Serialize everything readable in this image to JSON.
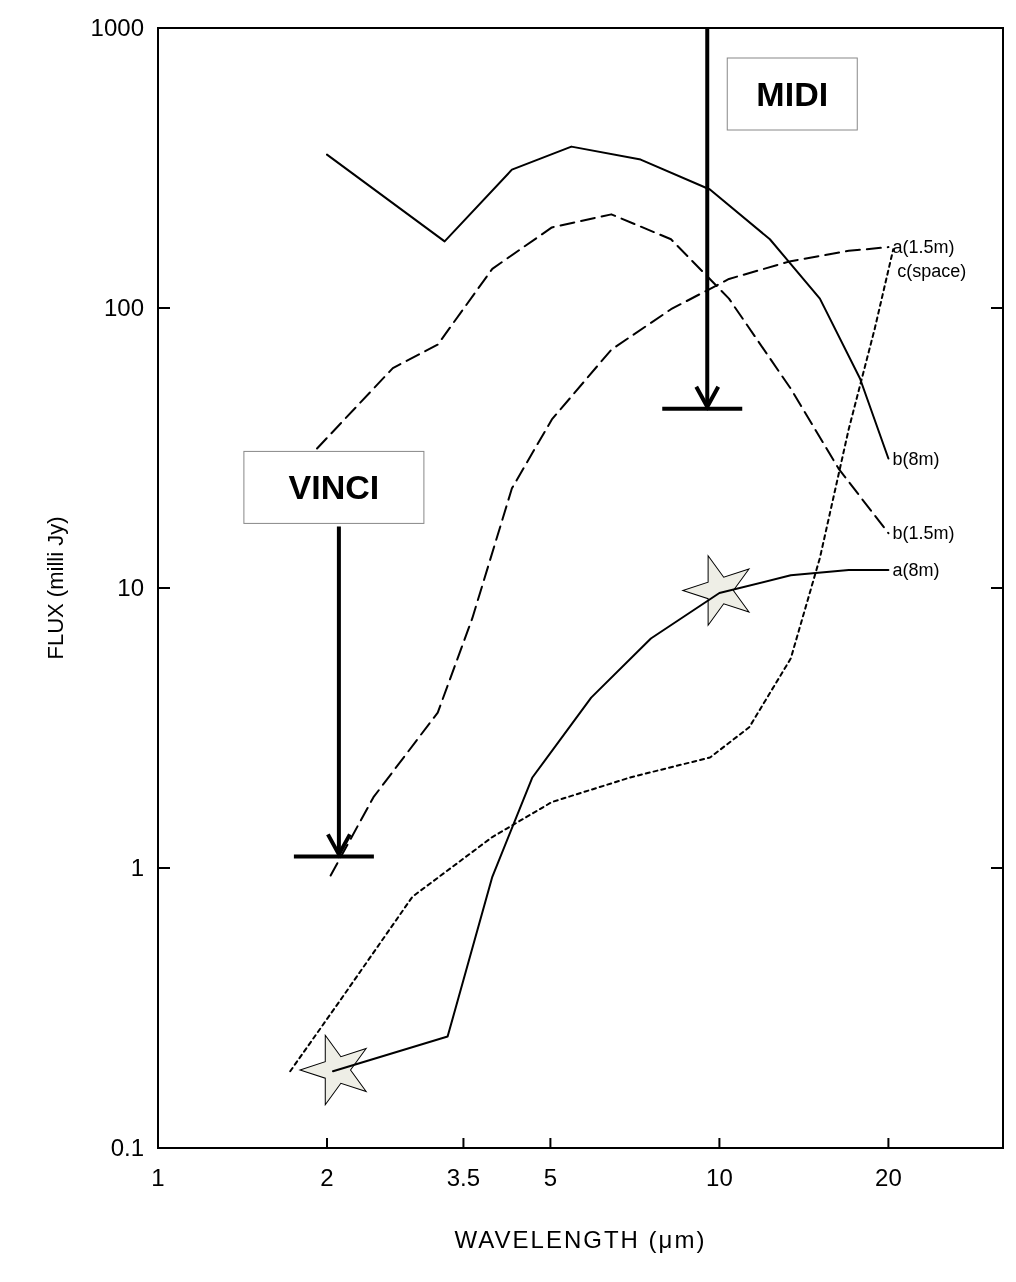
{
  "chart_data": {
    "type": "line",
    "xlabel": "WAVELENGTH (μm)",
    "ylabel": "FLUX (milli Jy)",
    "log": "xy",
    "xlim": [
      1,
      32
    ],
    "ylim": [
      0.1,
      1000
    ],
    "xticks": [
      1,
      2,
      3.5,
      5,
      10,
      20
    ],
    "yticks": [
      0.1,
      1,
      10,
      100,
      1000
    ],
    "grid": false,
    "series": [
      {
        "name": "a(1.5m)",
        "color": "#000000",
        "line_style": "dashed",
        "x": [
          2.03,
          2.42,
          3.15,
          3.63,
          4.27,
          5.03,
          6.42,
          8.2,
          10.4,
          13.4,
          17,
          20
        ],
        "values": [
          0.94,
          1.79,
          3.59,
          7.8,
          22.7,
          40,
          71,
          99,
          127,
          147,
          160,
          165
        ]
      },
      {
        "name": "c(space)",
        "color": "#000000",
        "line_style": "dotted",
        "x": [
          1.72,
          2.14,
          2.84,
          3.94,
          5.03,
          6.96,
          9.62,
          11.3,
          13.4,
          15.1,
          17,
          18.9,
          20.4
        ],
        "values": [
          0.188,
          0.35,
          0.79,
          1.29,
          1.72,
          2.11,
          2.48,
          3.18,
          5.6,
          12.8,
          37,
          84,
          162
        ]
      },
      {
        "name": "b(8m)",
        "color": "#000000",
        "line_style": "solid",
        "x": [
          2,
          3.24,
          4.27,
          5.45,
          7.24,
          9.62,
          12.3,
          15.1,
          17.8,
          20
        ],
        "values": [
          353,
          173,
          312,
          377,
          339,
          265,
          176,
          108,
          56,
          29
        ]
      },
      {
        "name": "b(1.5m)",
        "color": "#000000",
        "line_style": "dashed",
        "x": [
          1.92,
          2.62,
          3.15,
          3.94,
          5.03,
          6.42,
          8.2,
          10.4,
          13.4,
          16.3,
          20
        ],
        "values": [
          31.5,
          61,
          74,
          138,
          194,
          216,
          176,
          108,
          51.5,
          26.7,
          15.7
        ]
      },
      {
        "name": "a(8m)",
        "color": "#000000",
        "line_style": "solid",
        "x": [
          2.05,
          3.28,
          3.94,
          4.64,
          5.91,
          7.55,
          10,
          13.4,
          17,
          20
        ],
        "values": [
          0.188,
          0.25,
          0.93,
          2.1,
          4.06,
          6.6,
          9.6,
          11.1,
          11.6,
          11.6
        ]
      },
      {
        "type": "scatter",
        "marker": "star",
        "color": "#eeeee6",
        "x": [
          2.08,
          10
        ],
        "values": [
          0.19,
          9.8
        ]
      }
    ],
    "annotations": [
      {
        "text": "VINCI",
        "x": 2.1,
        "y": 1.1
      },
      "MIDI"
    ]
  }
}
